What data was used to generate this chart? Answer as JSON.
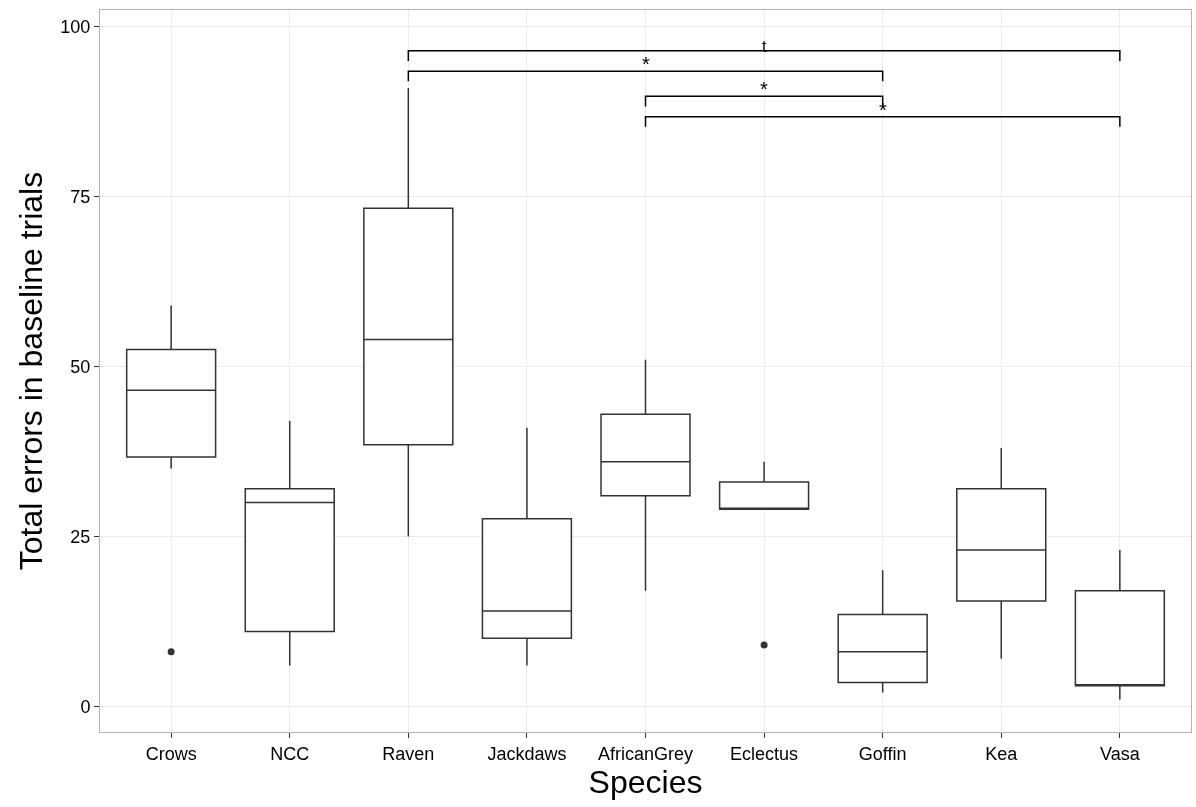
{
  "chart_data": {
    "type": "box",
    "xlabel": "Species",
    "ylabel": "Total errors in baseline trials",
    "categories": [
      "Crows",
      "NCC",
      "Raven",
      "Jackdaws",
      "AfricanGrey",
      "Eclectus",
      "Goffin",
      "Kea",
      "Vasa"
    ],
    "boxes": [
      {
        "low": 35,
        "q1": 36.7,
        "median": 46.5,
        "q3": 52.5,
        "high": 59,
        "outliers": [
          8
        ]
      },
      {
        "low": 6,
        "q1": 11,
        "median": 30,
        "q3": 32,
        "high": 42
      },
      {
        "low": 25,
        "q1": 38.5,
        "median": 54,
        "q3": 73.3,
        "high": 91
      },
      {
        "low": 6,
        "q1": 10,
        "median": 14,
        "q3": 27.6,
        "high": 41
      },
      {
        "low": 17,
        "q1": 31,
        "median": 36,
        "q3": 43,
        "high": 51
      },
      {
        "low": 29,
        "q1": 29,
        "median": 29,
        "q3": 33,
        "high": 36,
        "outliers": [
          9
        ]
      },
      {
        "low": 2,
        "q1": 3.5,
        "median": 8,
        "q3": 13.5,
        "high": 20
      },
      {
        "low": 7,
        "q1": 15.5,
        "median": 23,
        "q3": 32,
        "high": 38
      },
      {
        "low": 1,
        "q1": 3,
        "median": 3,
        "q3": 17,
        "high": 23
      }
    ],
    "color": "#333333",
    "ylim": [
      -3.8,
      102.5
    ],
    "yticks": [
      0,
      25,
      50,
      75,
      100
    ],
    "grid": true,
    "annotations": [
      "t",
      "*",
      "*",
      "*"
    ]
  }
}
